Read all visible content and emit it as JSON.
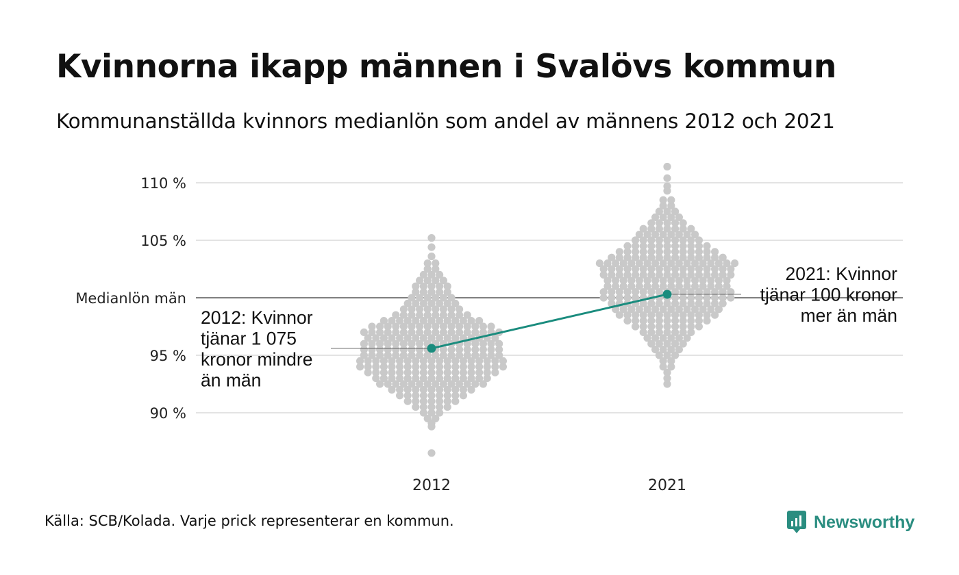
{
  "title": "Kvinnorna ikapp männen i Svalövs kommun",
  "subtitle": "Kommunanställda kvinnors medianlön som andel av männens 2012 och 2021",
  "source": "Källa: SCB/Kolada. Varje prick representerar en kommun.",
  "brand": {
    "name": "Newsworthy",
    "icon": "newsworthy-logo-icon",
    "color": "#2a8d80"
  },
  "chart_data": {
    "type": "scatter",
    "subtype": "beeswarm-with-highlight-line",
    "categories": [
      "2012",
      "2021"
    ],
    "ylim": [
      86,
      111.5
    ],
    "y_ticks": [
      {
        "value": 90,
        "label": "90 %"
      },
      {
        "value": 95,
        "label": "95 %"
      },
      {
        "value": 100,
        "label": "Medianlön män"
      },
      {
        "value": 105,
        "label": "105 %"
      },
      {
        "value": 110,
        "label": "110 %"
      }
    ],
    "reference_line": {
      "value": 100,
      "label": "Medianlön män"
    },
    "grid": true,
    "colors": {
      "dots": "#c9c9c9",
      "highlight": "#1a8c7e",
      "grid": "#e3e3e3",
      "reference": "#333333"
    },
    "highlight": {
      "name": "Svalövs kommun",
      "values": [
        95.6,
        100.3
      ]
    },
    "annotations": [
      {
        "category": "2012",
        "value": 95.6,
        "lines": [
          "2012: Kvinnor",
          "tjänar 1 075",
          "kronor mindre",
          "än män"
        ]
      },
      {
        "category": "2021",
        "value": 100.3,
        "lines": [
          "2021: Kvinnor",
          "tjänar 100 kronor",
          "mer än män"
        ]
      }
    ],
    "distributions": [
      {
        "category": "2012",
        "range": [
          86.5,
          105.2
        ],
        "outliers": [
          86.5,
          88.8,
          89.1,
          105.2,
          104.4,
          103.6
        ],
        "bins": [
          [
            89.5,
            2
          ],
          [
            90.0,
            3
          ],
          [
            90.5,
            5
          ],
          [
            91.0,
            7
          ],
          [
            91.5,
            9
          ],
          [
            92.0,
            11
          ],
          [
            92.5,
            14
          ],
          [
            93.0,
            15
          ],
          [
            93.5,
            17
          ],
          [
            94.0,
            19
          ],
          [
            94.5,
            19
          ],
          [
            95.0,
            18
          ],
          [
            95.5,
            18
          ],
          [
            96.0,
            18
          ],
          [
            96.5,
            17
          ],
          [
            97.0,
            18
          ],
          [
            97.5,
            16
          ],
          [
            98.0,
            13
          ],
          [
            98.5,
            10
          ],
          [
            99.0,
            8
          ],
          [
            99.5,
            7
          ],
          [
            100.0,
            6
          ],
          [
            100.5,
            5
          ],
          [
            101.0,
            5
          ],
          [
            101.5,
            4
          ],
          [
            102.0,
            3
          ],
          [
            102.5,
            2
          ],
          [
            103.0,
            2
          ]
        ]
      },
      {
        "category": "2021",
        "range": [
          92.5,
          111.4
        ],
        "outliers": [
          111.4,
          110.4,
          109.7,
          109.3,
          92.5,
          93.0,
          93.5
        ],
        "bins": [
          [
            94.0,
            2
          ],
          [
            94.5,
            2
          ],
          [
            95.0,
            3
          ],
          [
            95.5,
            4
          ],
          [
            96.0,
            5
          ],
          [
            96.5,
            6
          ],
          [
            97.0,
            7
          ],
          [
            97.5,
            9
          ],
          [
            98.0,
            11
          ],
          [
            98.5,
            13
          ],
          [
            99.0,
            14
          ],
          [
            99.5,
            15
          ],
          [
            100.0,
            17
          ],
          [
            100.5,
            17
          ],
          [
            101.0,
            16
          ],
          [
            101.5,
            16
          ],
          [
            102.0,
            17
          ],
          [
            102.5,
            17
          ],
          [
            103.0,
            18
          ],
          [
            103.5,
            15
          ],
          [
            104.0,
            13
          ],
          [
            104.5,
            11
          ],
          [
            105.0,
            9
          ],
          [
            105.5,
            8
          ],
          [
            106.0,
            7
          ],
          [
            106.5,
            5
          ],
          [
            107.0,
            4
          ],
          [
            107.5,
            3
          ],
          [
            108.0,
            2
          ],
          [
            108.5,
            2
          ]
        ]
      }
    ]
  }
}
